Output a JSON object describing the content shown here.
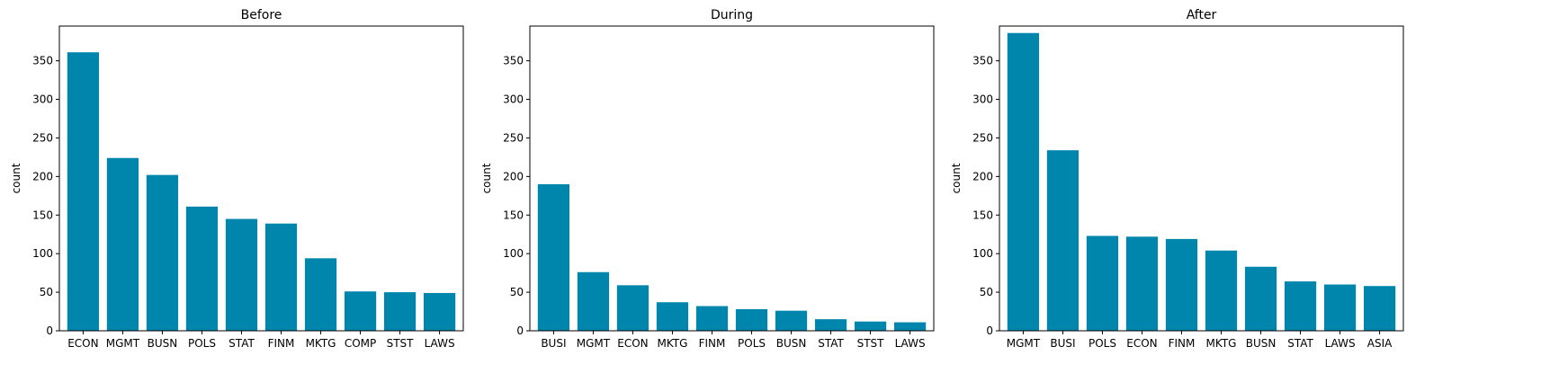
{
  "chart_data": [
    {
      "type": "bar",
      "title": "Before",
      "xlabel": "",
      "ylabel": "count",
      "ylim": [
        0,
        395
      ],
      "yticks": [
        0,
        50,
        100,
        150,
        200,
        250,
        300,
        350
      ],
      "categories": [
        "ECON",
        "MGMT",
        "BUSN",
        "POLS",
        "STAT",
        "FINM",
        "MKTG",
        "COMP",
        "STST",
        "LAWS"
      ],
      "values": [
        361,
        224,
        202,
        161,
        145,
        139,
        94,
        51,
        50,
        49
      ]
    },
    {
      "type": "bar",
      "title": "During",
      "xlabel": "",
      "ylabel": "count",
      "ylim": [
        0,
        395
      ],
      "yticks": [
        0,
        50,
        100,
        150,
        200,
        250,
        300,
        350
      ],
      "categories": [
        "BUSI",
        "MGMT",
        "ECON",
        "MKTG",
        "FINM",
        "POLS",
        "BUSN",
        "STAT",
        "STST",
        "LAWS"
      ],
      "values": [
        190,
        76,
        59,
        37,
        32,
        28,
        26,
        15,
        12,
        11
      ]
    },
    {
      "type": "bar",
      "title": "After",
      "xlabel": "",
      "ylabel": "count",
      "ylim": [
        0,
        395
      ],
      "yticks": [
        0,
        50,
        100,
        150,
        200,
        250,
        300,
        350
      ],
      "categories": [
        "MGMT",
        "BUSI",
        "POLS",
        "ECON",
        "FINM",
        "MKTG",
        "BUSN",
        "STAT",
        "LAWS",
        "ASIA"
      ],
      "values": [
        386,
        234,
        123,
        122,
        119,
        104,
        83,
        64,
        60,
        58
      ]
    }
  ],
  "colors": {
    "bar": "#0086ad",
    "axis": "#000000",
    "background": "#ffffff"
  }
}
